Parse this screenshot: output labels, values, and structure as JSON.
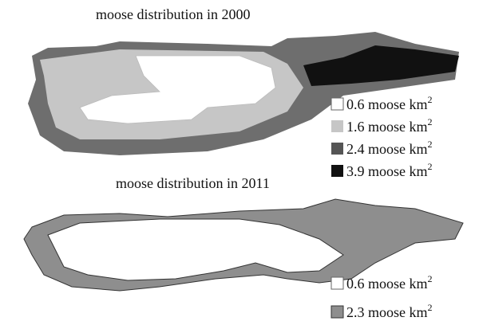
{
  "panels": [
    {
      "title": "moose distribution in 2000",
      "legend": [
        {
          "density": "0.6",
          "unit": "moose km",
          "exponent": "2"
        },
        {
          "density": "1.6",
          "unit": "moose km",
          "exponent": "2"
        },
        {
          "density": "2.4",
          "unit": "moose km",
          "exponent": "2"
        },
        {
          "density": "3.9",
          "unit": "moose km",
          "exponent": "2"
        }
      ]
    },
    {
      "title": "moose distribution in 2011",
      "legend": [
        {
          "density": "0.6",
          "unit": "moose km",
          "exponent": "2"
        },
        {
          "density": "2.3",
          "unit": "moose km",
          "exponent": "2"
        }
      ]
    }
  ]
}
